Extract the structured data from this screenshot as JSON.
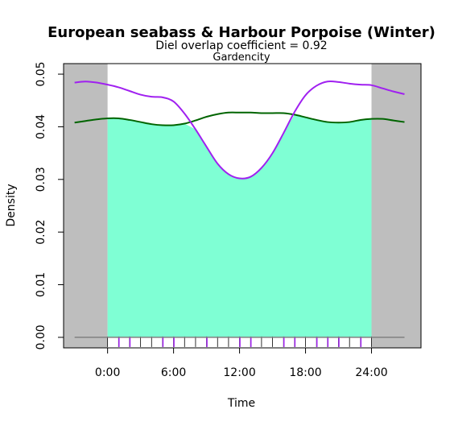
{
  "chart_data": {
    "type": "line",
    "title": "European seabass & Harbour Porpoise (Winter)",
    "subtitle_prefix": "Diel overlap coefficient = ",
    "overlap_coefficient": "0.92",
    "subtitle2": "Gardencity",
    "xlabel": "Time",
    "ylabel": "Density",
    "xlim": [
      -4,
      28.5
    ],
    "ylim": [
      -0.002,
      0.052
    ],
    "x_ticks": [
      0,
      6,
      12,
      18,
      24
    ],
    "x_tick_labels": [
      "0:00",
      "6:00",
      "12:00",
      "18:00",
      "24:00"
    ],
    "y_ticks": [
      0,
      0.01,
      0.02,
      0.03,
      0.04,
      0.05
    ],
    "y_tick_labels": [
      "0.00",
      "0.01",
      "0.02",
      "0.03",
      "0.04",
      "0.05"
    ],
    "shaded_night": [
      [
        -4,
        0
      ],
      [
        24,
        28.5
      ]
    ],
    "overlap_region": [
      0,
      24
    ],
    "colors": {
      "night": "#bebebe",
      "overlap": "#7fffd4",
      "seabass": "#a020f0",
      "porpoise": "#006400",
      "rug_seabass": "#a020f0",
      "rug_porpoise": "#000000",
      "baseline": "#808080"
    },
    "series": [
      {
        "x": [
          -3,
          -2,
          -1,
          0,
          1,
          2,
          3,
          4,
          5,
          6,
          7,
          8,
          9,
          10,
          11,
          12,
          13,
          14,
          15,
          16,
          17,
          18,
          19,
          20,
          21,
          22,
          23,
          24,
          25,
          26,
          27
        ],
        "y": [
          0.0484,
          0.0486,
          0.0484,
          0.048,
          0.0475,
          0.0468,
          0.0461,
          0.0457,
          0.0456,
          0.0448,
          0.0425,
          0.0395,
          0.0362,
          0.033,
          0.031,
          0.0302,
          0.0305,
          0.0322,
          0.035,
          0.0388,
          0.0428,
          0.046,
          0.0478,
          0.0486,
          0.0485,
          0.0482,
          0.048,
          0.0479,
          0.0473,
          0.0467,
          0.0462
        ]
      },
      {
        "x": [
          -3,
          -2,
          -1,
          0,
          1,
          2,
          3,
          4,
          5,
          6,
          7,
          8,
          9,
          10,
          11,
          12,
          13,
          14,
          15,
          16,
          17,
          18,
          19,
          20,
          21,
          22,
          23,
          24,
          25,
          26,
          27
        ],
        "y": [
          0.0408,
          0.0411,
          0.0414,
          0.0416,
          0.0416,
          0.0413,
          0.0409,
          0.0405,
          0.0403,
          0.0403,
          0.0406,
          0.0412,
          0.0419,
          0.0424,
          0.0427,
          0.0427,
          0.0427,
          0.0426,
          0.0426,
          0.0426,
          0.0423,
          0.0418,
          0.0413,
          0.0409,
          0.0408,
          0.0409,
          0.0413,
          0.0415,
          0.0415,
          0.0412,
          0.0409
        ]
      }
    ],
    "rug_seabass_x": [
      1,
      2,
      5,
      6,
      9,
      12,
      13,
      16,
      17,
      19,
      20,
      21,
      23
    ],
    "rug_porpoise_x": [
      0,
      1,
      2,
      3,
      4,
      5,
      6,
      7,
      8,
      9,
      10,
      11,
      12,
      13,
      14,
      15,
      16,
      17,
      18,
      19,
      20,
      21,
      22,
      23,
      24
    ]
  }
}
